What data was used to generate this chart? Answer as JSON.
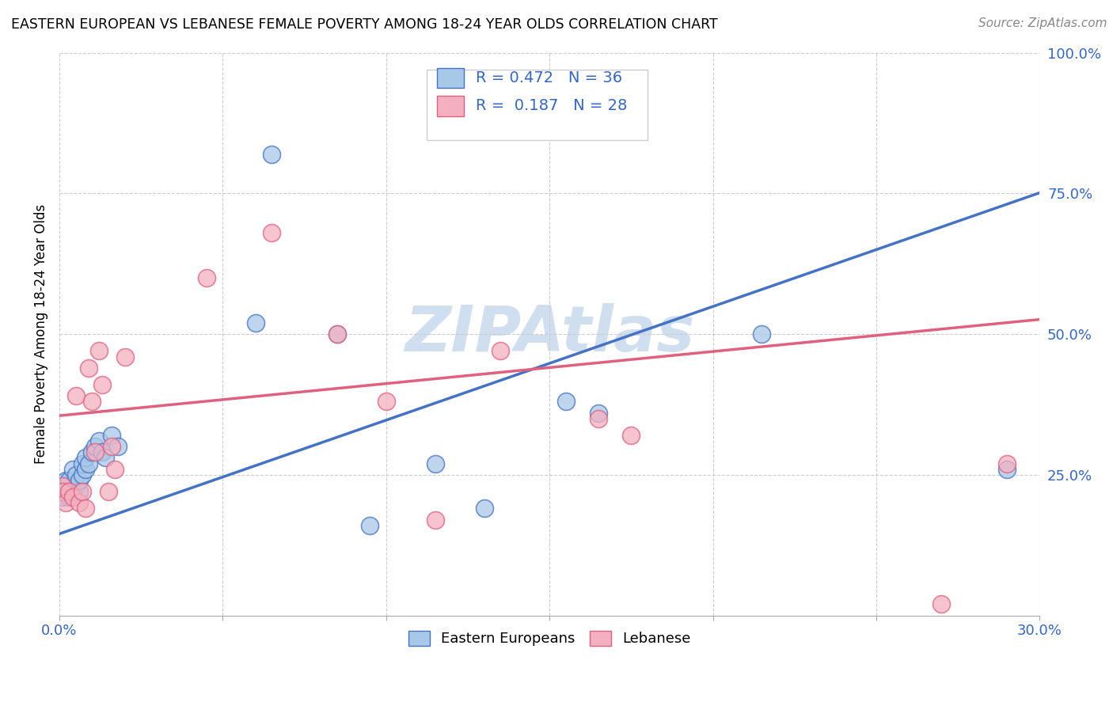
{
  "title": "EASTERN EUROPEAN VS LEBANESE FEMALE POVERTY AMONG 18-24 YEAR OLDS CORRELATION CHART",
  "source": "Source: ZipAtlas.com",
  "ylabel": "Female Poverty Among 18-24 Year Olds",
  "xlim": [
    0.0,
    0.3
  ],
  "ylim": [
    0.0,
    1.0
  ],
  "xticks": [
    0.0,
    0.05,
    0.1,
    0.15,
    0.2,
    0.25,
    0.3
  ],
  "yticks": [
    0.0,
    0.25,
    0.5,
    0.75,
    1.0
  ],
  "xticklabels": [
    "0.0%",
    "",
    "",
    "",
    "",
    "",
    "30.0%"
  ],
  "yticklabels": [
    "",
    "25.0%",
    "50.0%",
    "75.0%",
    "100.0%"
  ],
  "blue_color": "#a8c8e8",
  "pink_color": "#f4b0c0",
  "blue_line_color": "#4472c4",
  "pink_line_color": "#e06080",
  "legend_text_color": "#3366cc",
  "watermark_color": "#d0dff0",
  "R_blue": 0.472,
  "N_blue": 36,
  "R_pink": 0.187,
  "N_pink": 28,
  "blue_intercept": 0.145,
  "blue_slope": 2.02,
  "pink_intercept": 0.355,
  "pink_slope": 0.57,
  "blue_x": [
    0.001,
    0.001,
    0.001,
    0.002,
    0.002,
    0.002,
    0.003,
    0.003,
    0.004,
    0.004,
    0.005,
    0.005,
    0.006,
    0.006,
    0.007,
    0.007,
    0.008,
    0.008,
    0.009,
    0.01,
    0.011,
    0.012,
    0.013,
    0.014,
    0.016,
    0.018,
    0.06,
    0.065,
    0.085,
    0.095,
    0.115,
    0.13,
    0.155,
    0.165,
    0.215,
    0.29
  ],
  "blue_y": [
    0.21,
    0.23,
    0.22,
    0.22,
    0.24,
    0.23,
    0.21,
    0.24,
    0.22,
    0.26,
    0.23,
    0.25,
    0.22,
    0.24,
    0.25,
    0.27,
    0.26,
    0.28,
    0.27,
    0.29,
    0.3,
    0.31,
    0.29,
    0.28,
    0.32,
    0.3,
    0.52,
    0.82,
    0.5,
    0.16,
    0.27,
    0.19,
    0.38,
    0.36,
    0.5,
    0.26
  ],
  "pink_x": [
    0.001,
    0.001,
    0.002,
    0.003,
    0.004,
    0.005,
    0.006,
    0.007,
    0.008,
    0.009,
    0.01,
    0.011,
    0.012,
    0.013,
    0.015,
    0.016,
    0.017,
    0.02,
    0.045,
    0.065,
    0.085,
    0.1,
    0.115,
    0.135,
    0.165,
    0.175,
    0.27,
    0.29
  ],
  "pink_y": [
    0.23,
    0.22,
    0.2,
    0.22,
    0.21,
    0.39,
    0.2,
    0.22,
    0.19,
    0.44,
    0.38,
    0.29,
    0.47,
    0.41,
    0.22,
    0.3,
    0.26,
    0.46,
    0.6,
    0.68,
    0.5,
    0.38,
    0.17,
    0.47,
    0.35,
    0.32,
    0.02,
    0.27
  ]
}
